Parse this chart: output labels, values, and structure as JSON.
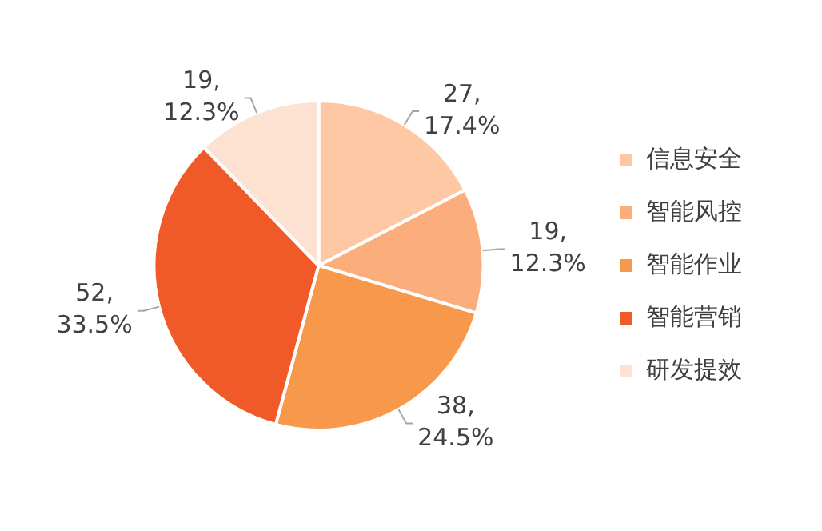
{
  "chart_data": {
    "type": "pie",
    "categories": [
      "信息安全",
      "智能风控",
      "智能作业",
      "智能营销",
      "研发提效"
    ],
    "values": [
      27,
      19,
      38,
      52,
      19
    ],
    "value_labels": [
      "27, 17.4%",
      "19, 12.3%",
      "38, 24.5%",
      "52, 33.5%",
      "19, 12.3%"
    ],
    "colors": [
      "#fdc8a3",
      "#fbae7b",
      "#f7984a",
      "#f05a28",
      "#fde2d1"
    ],
    "legend": "right"
  }
}
